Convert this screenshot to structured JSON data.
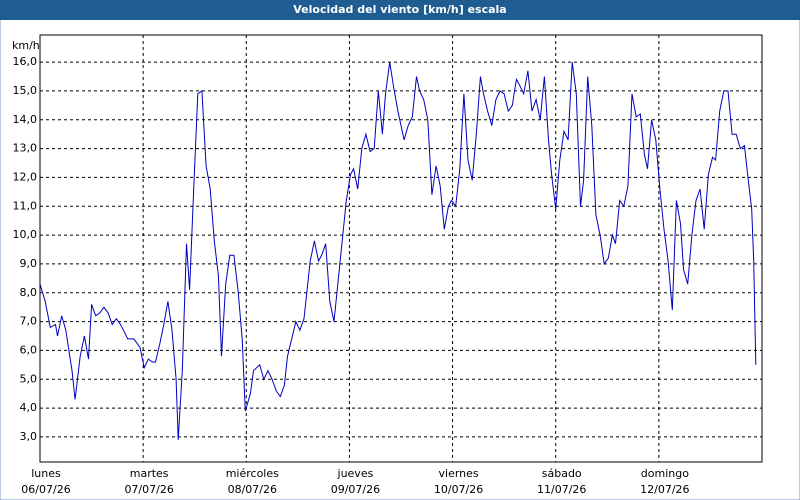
{
  "chart_data": {
    "type": "line",
    "title": "Velocidad del viento [km/h] escala",
    "y_unit": "km/h",
    "xlim": [
      0,
      7
    ],
    "ylim": [
      2.13,
      16.94
    ],
    "grid": true,
    "yticks": [
      {
        "value": 3,
        "label": "3,0"
      },
      {
        "value": 4,
        "label": "4,0"
      },
      {
        "value": 5,
        "label": "5,0"
      },
      {
        "value": 6,
        "label": "6,0"
      },
      {
        "value": 7,
        "label": "7,0"
      },
      {
        "value": 8,
        "label": "8,0"
      },
      {
        "value": 9,
        "label": "9,0"
      },
      {
        "value": 10,
        "label": "10,0"
      },
      {
        "value": 11,
        "label": "11,0"
      },
      {
        "value": 12,
        "label": "12,0"
      },
      {
        "value": 13,
        "label": "13,0"
      },
      {
        "value": 14,
        "label": "14,0"
      },
      {
        "value": 15,
        "label": "15,0"
      },
      {
        "value": 16,
        "label": "16,0"
      }
    ],
    "xticks": [
      {
        "value": 0,
        "label": "lunes",
        "date": "06/07/26"
      },
      {
        "value": 1,
        "label": "martes",
        "date": "07/07/26"
      },
      {
        "value": 2,
        "label": "miércoles",
        "date": "08/07/26"
      },
      {
        "value": 3,
        "label": "jueves",
        "date": "09/07/26"
      },
      {
        "value": 4,
        "label": "viernes",
        "date": "10/07/26"
      },
      {
        "value": 5,
        "label": "sábado",
        "date": "11/07/26"
      },
      {
        "value": 6,
        "label": "domingo",
        "date": "12/07/26"
      }
    ],
    "series": [
      {
        "name": "Velocidad del viento",
        "color": "#0000c0",
        "x": [
          0,
          0.05,
          0.1,
          0.15,
          0.17,
          0.21,
          0.25,
          0.31,
          0.34,
          0.39,
          0.43,
          0.47,
          0.5,
          0.54,
          0.58,
          0.62,
          0.66,
          0.7,
          0.74,
          0.78,
          0.81,
          0.85,
          0.91,
          0.97,
          1.01,
          1.05,
          1.09,
          1.12,
          1.16,
          1.2,
          1.24,
          1.28,
          1.32,
          1.34,
          1.38,
          1.42,
          1.45,
          1.49,
          1.53,
          1.57,
          1.61,
          1.65,
          1.69,
          1.73,
          1.76,
          1.8,
          1.84,
          1.88,
          1.92,
          1.96,
          1.99,
          2.04,
          2.07,
          2.13,
          2.17,
          2.21,
          2.25,
          2.29,
          2.33,
          2.37,
          2.4,
          2.44,
          2.48,
          2.52,
          2.56,
          2.62,
          2.66,
          2.7,
          2.73,
          2.77,
          2.81,
          2.85,
          2.89,
          2.93,
          2.97,
          3.01,
          3.04,
          3.08,
          3.12,
          3.16,
          3.2,
          3.24,
          3.28,
          3.32,
          3.35,
          3.39,
          3.43,
          3.47,
          3.53,
          3.57,
          3.61,
          3.65,
          3.68,
          3.72,
          3.76,
          3.8,
          3.84,
          3.88,
          3.92,
          3.96,
          3.99,
          4.03,
          4.07,
          4.11,
          4.15,
          4.19,
          4.23,
          4.27,
          4.3,
          4.34,
          4.38,
          4.42,
          4.46,
          4.5,
          4.54,
          4.58,
          4.6,
          4.62,
          4.65,
          4.69,
          4.73,
          4.77,
          4.81,
          4.85,
          4.89,
          4.93,
          4.96,
          5.0,
          5.04,
          5.08,
          5.12,
          5.16,
          5.2,
          5.24,
          5.27,
          5.31,
          5.35,
          5.39,
          5.43,
          5.47,
          5.51,
          5.55,
          5.58,
          5.62,
          5.66,
          5.7,
          5.74,
          5.78,
          5.82,
          5.86,
          5.89,
          5.93,
          5.97,
          6.01,
          6.05,
          6.09,
          6.13,
          6.17,
          6.21,
          6.24,
          6.28,
          6.32,
          6.36,
          6.4,
          6.44,
          6.48,
          6.52,
          6.55,
          6.59,
          6.63,
          6.67,
          6.71,
          6.75,
          6.79,
          6.83,
          6.86,
          6.9,
          6.92,
          6.94
        ],
        "values": [
          8.3,
          7.7,
          6.8,
          6.9,
          6.5,
          7.2,
          6.7,
          5.3,
          4.3,
          5.8,
          6.5,
          5.7,
          7.6,
          7.2,
          7.3,
          7.5,
          7.3,
          6.9,
          7.1,
          6.9,
          6.7,
          6.4,
          6.4,
          6.1,
          5.4,
          5.7,
          5.6,
          5.6,
          6.2,
          6.9,
          7.7,
          6.7,
          5.0,
          2.9,
          5.3,
          9.7,
          8.1,
          11.6,
          14.9,
          15.0,
          12.4,
          11.6,
          9.8,
          8.6,
          5.8,
          8.3,
          9.3,
          9.3,
          8.1,
          6.4,
          3.9,
          4.5,
          5.3,
          5.5,
          5.0,
          5.3,
          5.0,
          4.6,
          4.4,
          4.8,
          5.8,
          6.4,
          7.0,
          6.7,
          7.1,
          9.1,
          9.8,
          9.1,
          9.3,
          9.7,
          7.7,
          7.0,
          8.4,
          9.8,
          11.2,
          12.1,
          12.3,
          11.6,
          13.0,
          13.5,
          12.9,
          13.0,
          15.0,
          13.5,
          14.9,
          16.0,
          15.1,
          14.3,
          13.3,
          13.8,
          14.1,
          15.5,
          15.0,
          14.7,
          14.0,
          11.4,
          12.4,
          11.7,
          10.2,
          11.0,
          11.2,
          11.0,
          12.3,
          14.9,
          12.6,
          11.9,
          13.5,
          15.5,
          14.9,
          14.3,
          13.8,
          14.7,
          15.0,
          14.9,
          14.3,
          14.5,
          15.0,
          15.4,
          15.2,
          14.9,
          15.7,
          14.3,
          14.7,
          14.0,
          15.5,
          13.3,
          12.1,
          10.9,
          12.6,
          13.6,
          13.3,
          16.0,
          14.9,
          11.0,
          11.9,
          15.5,
          13.8,
          10.7,
          10.0,
          9.0,
          9.2,
          10.0,
          9.7,
          11.2,
          11.0,
          11.7,
          14.9,
          14.1,
          14.2,
          12.8,
          12.3,
          14.0,
          13.3,
          11.6,
          10.2,
          9.1,
          7.4,
          11.2,
          10.4,
          8.8,
          8.3,
          10.0,
          11.2,
          11.6,
          10.2,
          12.1,
          12.7,
          12.6,
          14.3,
          15.0,
          15.0,
          13.5,
          13.5,
          13.0,
          13.1,
          12.1,
          10.9,
          9.1,
          5.5
        ]
      }
    ]
  }
}
